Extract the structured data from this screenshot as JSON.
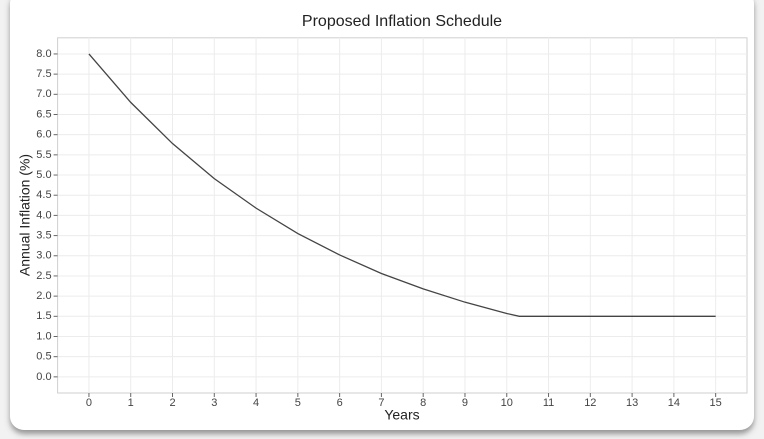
{
  "chart_data": {
    "type": "line",
    "title": "Proposed Inflation Schedule",
    "x_label": "Years",
    "y_label": "Annual Inflation (%)",
    "x": [
      0,
      1,
      2,
      3,
      4,
      5,
      6,
      7,
      8,
      9,
      10,
      10.3,
      15
    ],
    "values": [
      8.0,
      6.8,
      5.78,
      4.91,
      4.18,
      3.55,
      3.02,
      2.56,
      2.18,
      1.85,
      1.57,
      1.5,
      1.5
    ],
    "color": "#444444",
    "xlim": [
      -0.75,
      15.75
    ],
    "xticks": [
      0,
      1,
      2,
      3,
      4,
      5,
      6,
      7,
      8,
      9,
      10,
      11,
      12,
      13,
      14,
      15
    ],
    "ylim": [
      -0.4,
      8.4
    ],
    "yticks": [
      {
        "value": 0,
        "label": "0.0"
      },
      0.5,
      {
        "value": 1,
        "label": "1.0"
      },
      1.5,
      {
        "value": 2,
        "label": "2.0"
      },
      2.5,
      {
        "value": 3,
        "label": "3.0"
      },
      3.5,
      {
        "value": 4,
        "label": "4.0"
      },
      4.5,
      {
        "value": 5,
        "label": "5.0"
      },
      5.5,
      {
        "value": 6,
        "label": "6.0"
      },
      6.5,
      {
        "value": 7,
        "label": "7.0"
      },
      7.5,
      {
        "value": 8,
        "label": "8.0"
      }
    ],
    "grid": true
  }
}
